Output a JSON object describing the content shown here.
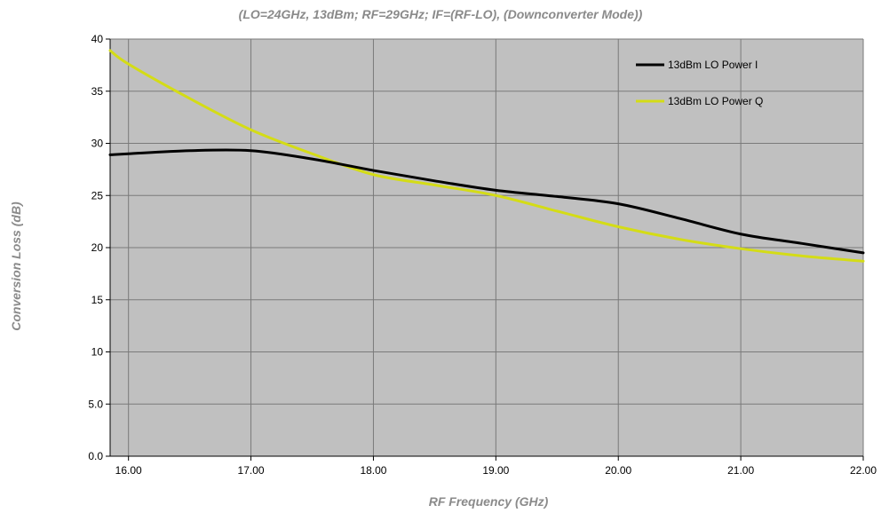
{
  "chart_data": {
    "type": "line",
    "title": "",
    "subtitle": "(LO=24GHz, 13dBm; RF=29GHz; IF=(RF-LO), (Downconverter Mode))",
    "xlabel": "RF Frequency (GHz)",
    "ylabel": "Conversion Loss (dB)",
    "xlim": [
      15.85,
      22.0
    ],
    "ylim": [
      0,
      40
    ],
    "x_ticks": [
      16.0,
      17.0,
      18.0,
      19.0,
      20.0,
      21.0,
      22.0
    ],
    "x_tick_labels": [
      "16.00",
      "17.00",
      "18.00",
      "19.00",
      "20.00",
      "21.00",
      "22.00"
    ],
    "y_ticks": [
      0,
      5,
      10,
      15,
      20,
      25,
      30,
      35,
      40
    ],
    "y_tick_labels": [
      "0.0",
      "5.0",
      "10",
      "15",
      "20",
      "25",
      "30",
      "35",
      "40"
    ],
    "grid": true,
    "legend_position": "top-right",
    "plot_background": "#c0c0c0",
    "series": [
      {
        "name": "13dBm LO Power I",
        "color": "#000000",
        "x": [
          15.85,
          16.0,
          16.5,
          17.0,
          17.5,
          18.0,
          18.5,
          19.0,
          19.5,
          20.0,
          20.5,
          21.0,
          21.5,
          22.0
        ],
        "y": [
          28.9,
          29.0,
          29.3,
          29.3,
          28.5,
          27.4,
          26.4,
          25.5,
          24.9,
          24.2,
          22.8,
          21.3,
          20.4,
          19.5
        ]
      },
      {
        "name": "13dBm LO Power Q",
        "color": "#d4dc16",
        "x": [
          15.85,
          16.0,
          16.5,
          17.0,
          17.5,
          18.0,
          18.5,
          19.0,
          19.5,
          20.0,
          20.5,
          21.0,
          21.5,
          22.0
        ],
        "y": [
          38.9,
          37.6,
          34.3,
          31.3,
          29.0,
          27.0,
          26.0,
          25.0,
          23.5,
          22.0,
          20.8,
          19.9,
          19.2,
          18.7
        ]
      }
    ]
  }
}
